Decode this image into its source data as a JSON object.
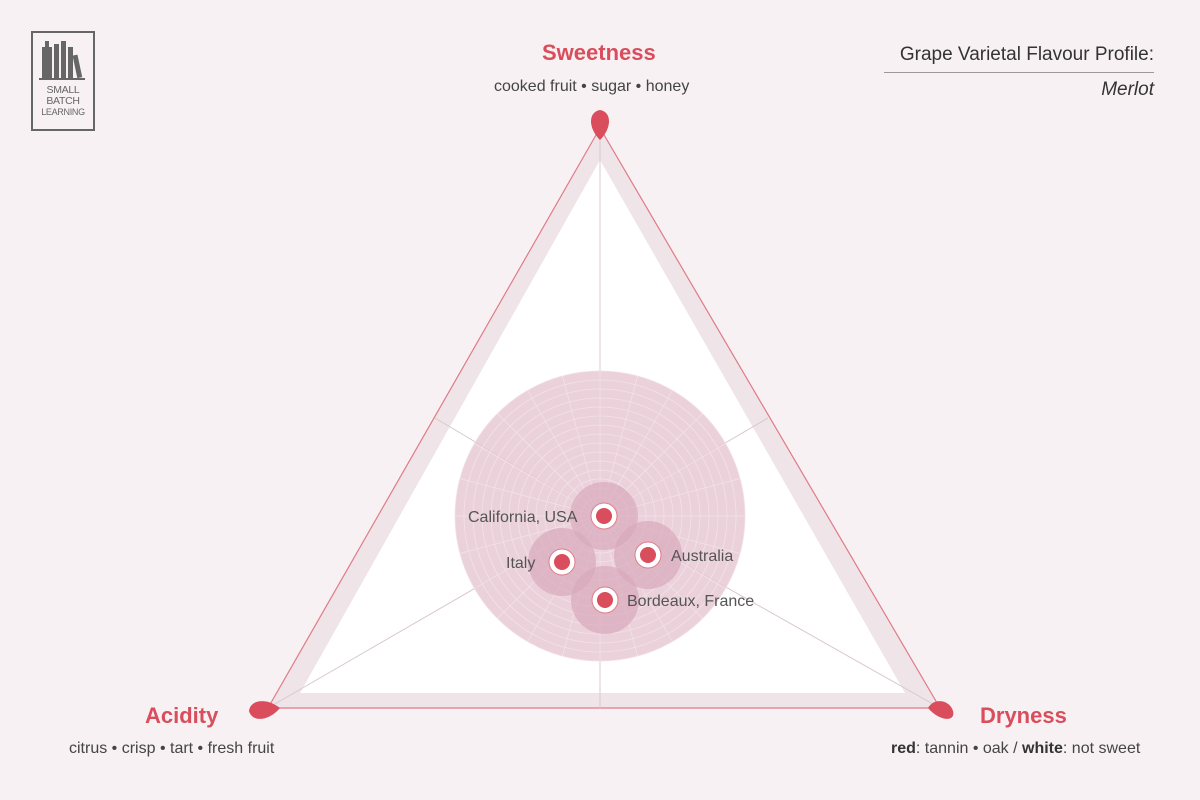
{
  "logo": {
    "line1": "SMALL",
    "line2": "BATCH",
    "line3": "LEARNING"
  },
  "title": {
    "heading": "Grape Varietal Flavour Profile:",
    "variety": "Merlot"
  },
  "vertices": {
    "top": {
      "label": "Sweetness",
      "description": "cooked fruit • sugar • honey"
    },
    "left": {
      "label": "Acidity",
      "description": "citrus • crisp • tart • fresh fruit"
    },
    "right": {
      "label": "Dryness",
      "desc_red": "red",
      "desc_red_rest": ": tannin • oak / ",
      "desc_white": "white",
      "desc_white_rest": ": not sweet"
    }
  },
  "regions": [
    {
      "name": "California, USA"
    },
    {
      "name": "Italy"
    },
    {
      "name": "Australia"
    },
    {
      "name": "Bordeaux, France"
    }
  ],
  "colors": {
    "accent": "#d94d5c",
    "background": "#f7f1f3",
    "halo": "#e8c9d4",
    "triangle_edge": "#e07a88"
  }
}
